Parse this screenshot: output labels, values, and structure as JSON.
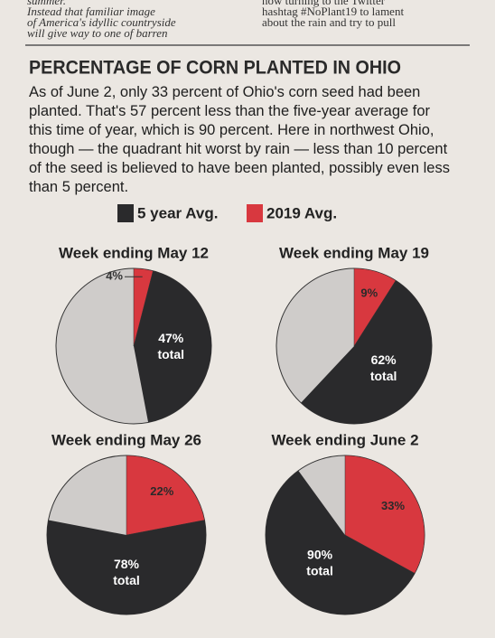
{
  "article_fragments": {
    "left": [
      "summer.",
      "Instead that familiar image",
      "of America's idyllic countryside",
      "will give way to one of barren"
    ],
    "right": [
      "now turning to the Twitter",
      "hashtag #NoPlant19 to lament",
      "about the rain and try to pull"
    ]
  },
  "headline": "PERCENTAGE OF CORN PLANTED IN OHIO",
  "description": "As of June 2, only 33 percent of Ohio's corn seed had been planted. That's 57 percent less than the five-year average for this time of year, which is 90 percent. Here in northwest Ohio, though — the quadrant hit worst by rain — less than 10 percent of the seed is believed to have been planted, possibly even less than 5 percent.",
  "legend": [
    {
      "name": "5 year Avg.",
      "color": "#2a2a2c"
    },
    {
      "name": "2019 Avg.",
      "color": "#d8383f"
    }
  ],
  "total_label": "total",
  "chart_data": [
    {
      "type": "pie",
      "title": "Week ending May 12",
      "series": [
        {
          "values": [
            47
          ],
          "value_labels": [
            "47%"
          ]
        },
        {
          "values": [
            4
          ],
          "value_labels": [
            "4%"
          ]
        }
      ]
    },
    {
      "type": "pie",
      "title": "Week ending May 19",
      "series": [
        {
          "values": [
            62
          ],
          "value_labels": [
            "62%"
          ]
        },
        {
          "values": [
            9
          ],
          "value_labels": [
            "9%"
          ]
        }
      ]
    },
    {
      "type": "pie",
      "title": "Week ending May 26",
      "series": [
        {
          "values": [
            78
          ],
          "value_labels": [
            "78%"
          ]
        },
        {
          "values": [
            22
          ],
          "value_labels": [
            "22%"
          ]
        }
      ]
    },
    {
      "type": "pie",
      "title": "Week ending June 2",
      "series": [
        {
          "values": [
            90
          ],
          "value_labels": [
            "90%"
          ]
        },
        {
          "values": [
            33
          ],
          "value_labels": [
            "33%"
          ]
        }
      ]
    }
  ]
}
